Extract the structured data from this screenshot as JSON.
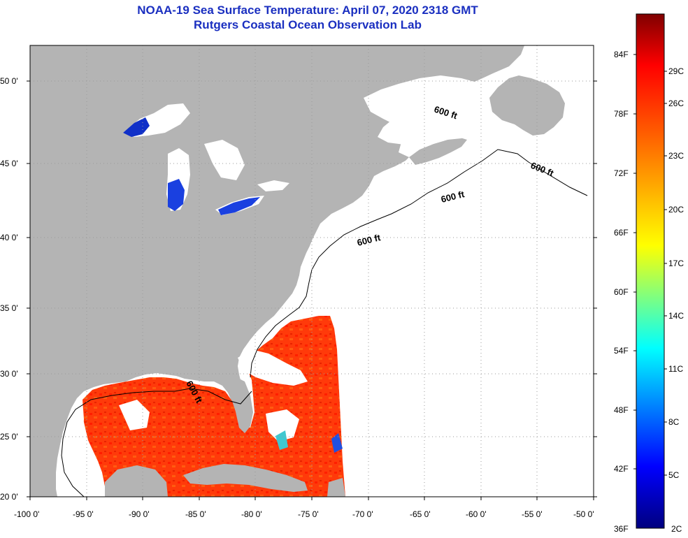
{
  "title": {
    "line1": "NOAA-19 Sea Surface Temperature:  April 07, 2020 2318 GMT",
    "line2": "Rutgers Coastal Ocean Observation Lab"
  },
  "map": {
    "lat_labels": [
      "50 0'",
      "45 0'",
      "40 0'",
      "35 0'",
      "30 0'",
      "25 0'",
      "20 0'"
    ],
    "lon_labels": [
      "-100 0'",
      "-95 0'",
      "-90 0'",
      "-85 0'",
      "-80 0'",
      "-75 0'",
      "-70 0'",
      "-65 0'",
      "-60 0'",
      "-55 0'",
      "-50 0'"
    ],
    "contour_labels": [
      "600 ft",
      "600 ft",
      "600 ft",
      "600 ft",
      "600 ft"
    ],
    "colors": {
      "land": "#b4b4b4",
      "cloud": "#ffffff",
      "warm_sst": "#ff3300",
      "cold_sst": "#0018c8"
    }
  },
  "colorbar": {
    "fahrenheit_labels": [
      "84F",
      "78F",
      "72F",
      "66F",
      "60F",
      "54F",
      "48F",
      "42F",
      "36F"
    ],
    "celsius_labels": [
      "29C",
      "26C",
      "23C",
      "20C",
      "17C",
      "14C",
      "11C",
      "8C",
      "5C",
      "2C"
    ]
  }
}
